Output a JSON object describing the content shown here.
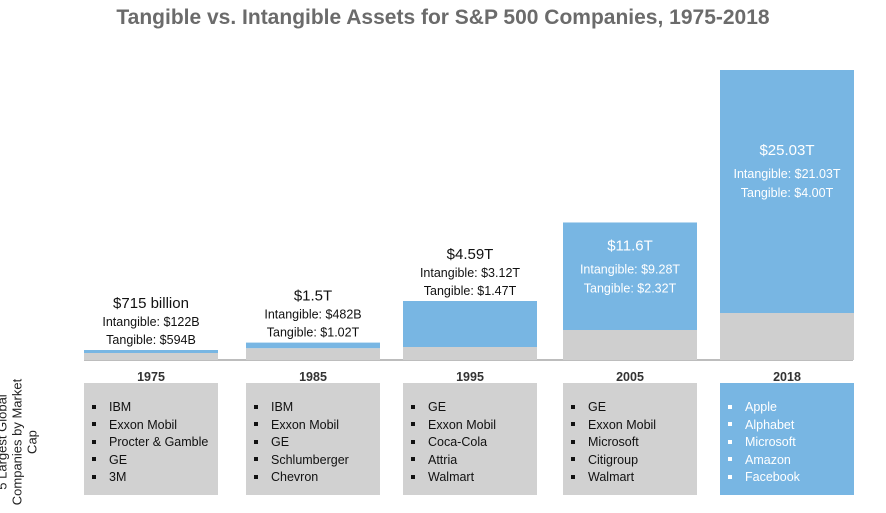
{
  "title": "Tangible vs. Intangible Assets for S&P 500 Companies, 1975-2018",
  "side_label": "5 Largest Global Companies by Market Cap",
  "colors": {
    "intangible": "#78b6e3",
    "tangible": "#cfcfcf",
    "baseline": "#bdbdbd",
    "box": "#d1d1d1",
    "highlight_box": "#78b6e3",
    "inside_text": "#ffffff",
    "outside_text": "#111111"
  },
  "chart_data": {
    "type": "bar",
    "stacked": true,
    "title": "Tangible vs. Intangible Assets for S&P 500 Companies, 1975-2018",
    "categories": [
      "1975",
      "1985",
      "1995",
      "2005",
      "2018"
    ],
    "unit": "USD trillions",
    "series": [
      {
        "name": "Tangible",
        "values": [
          0.594,
          1.02,
          1.47,
          2.32,
          4.0
        ]
      },
      {
        "name": "Intangible",
        "values": [
          0.122,
          0.482,
          3.12,
          9.28,
          21.03
        ]
      }
    ],
    "totals": [
      0.715,
      1.5,
      4.59,
      11.6,
      25.03
    ],
    "ylim": [
      0,
      25.03
    ],
    "grid": false,
    "legend": "none",
    "labels": [
      {
        "total": "$715 billion",
        "intangible": "Intangible: $122B",
        "tangible": "Tangible: $594B",
        "position": "above"
      },
      {
        "total": "$1.5T",
        "intangible": "Intangible: $482B",
        "tangible": "Tangible: $1.02T",
        "position": "above"
      },
      {
        "total": "$4.59T",
        "intangible": "Intangible: $3.12T",
        "tangible": "Tangible: $1.47T",
        "position": "above"
      },
      {
        "total": "$11.6T",
        "intangible": "Intangible: $9.28T",
        "tangible": "Tangible: $2.32T",
        "position": "inside"
      },
      {
        "total": "$25.03T",
        "intangible": "Intangible: $21.03T",
        "tangible": "Tangible: $4.00T",
        "position": "inside"
      }
    ]
  },
  "companies": [
    {
      "year": "1975",
      "highlight": false,
      "names": [
        "IBM",
        "Exxon Mobil",
        "Procter & Gamble",
        "GE",
        "3M"
      ]
    },
    {
      "year": "1985",
      "highlight": false,
      "names": [
        "IBM",
        "Exxon Mobil",
        "GE",
        "Schlumberger",
        "Chevron"
      ]
    },
    {
      "year": "1995",
      "highlight": false,
      "names": [
        "GE",
        "Exxon Mobil",
        "Coca-Cola",
        "Attria",
        "Walmart"
      ]
    },
    {
      "year": "2005",
      "highlight": false,
      "names": [
        "GE",
        "Exxon Mobil",
        "Microsoft",
        "Citigroup",
        "Walmart"
      ]
    },
    {
      "year": "2018",
      "highlight": true,
      "names": [
        "Apple",
        "Alphabet",
        "Microsoft",
        "Amazon",
        "Facebook"
      ]
    }
  ]
}
